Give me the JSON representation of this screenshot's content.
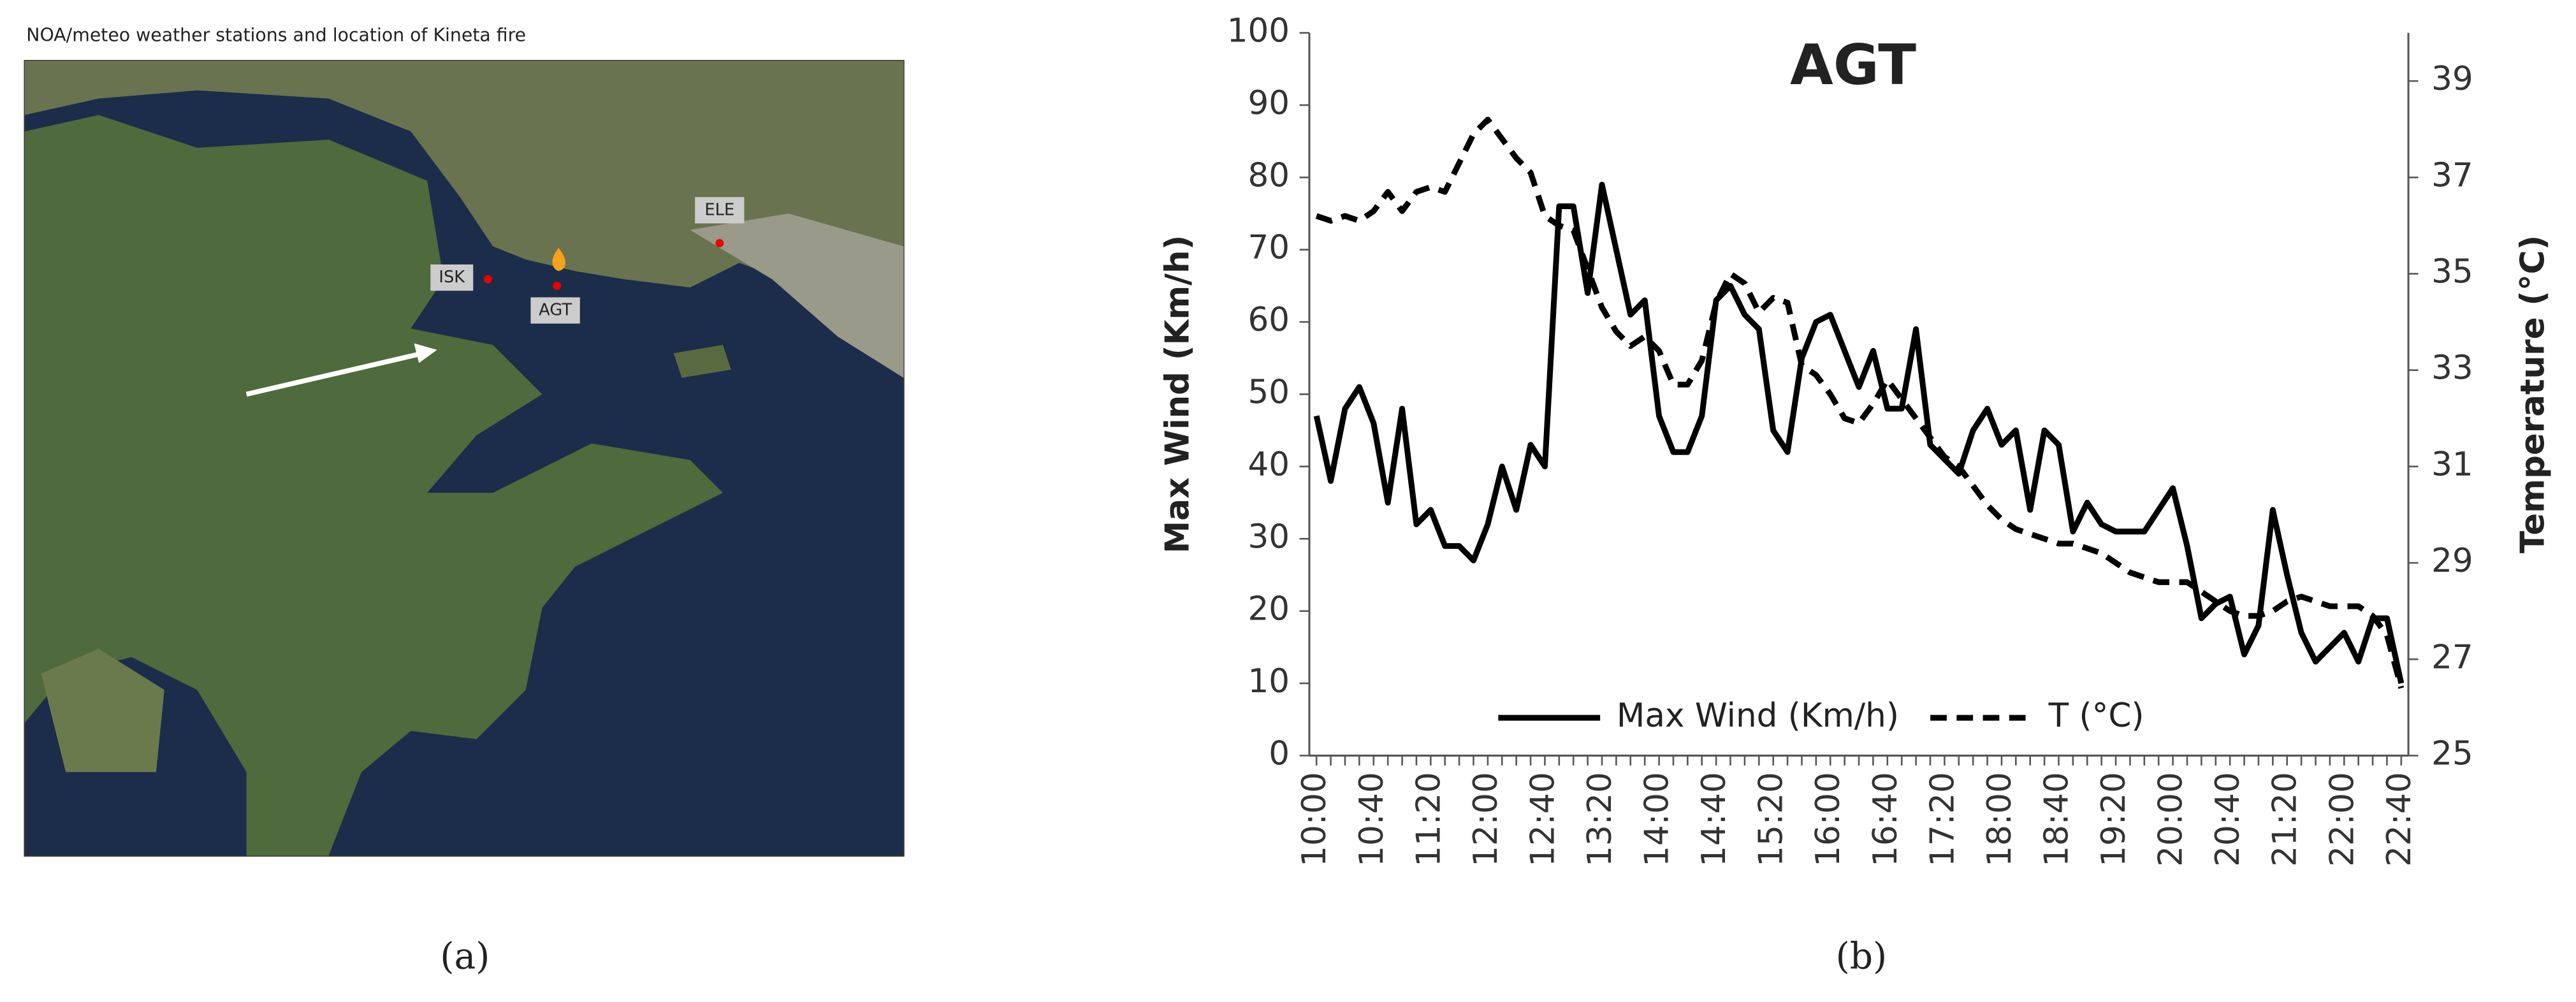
{
  "map": {
    "title": "NOA/meteo weather stations and location of Kineta fire",
    "stations": [
      "ISK",
      "AGT",
      "ELE"
    ]
  },
  "panel_labels": [
    "(a)",
    "(b)"
  ],
  "chart_data": {
    "type": "line",
    "title": "AGT",
    "ylabel": "Max Wind (Km/h)",
    "y2label": "Temperature (°C)",
    "categories": [
      "10:00",
      null,
      null,
      null,
      "10:40",
      null,
      null,
      null,
      "11:20",
      null,
      null,
      null,
      "12:00",
      null,
      null,
      null,
      "12:40",
      null,
      null,
      null,
      "13:20",
      null,
      null,
      null,
      "14:00",
      null,
      null,
      null,
      "14:40",
      null,
      null,
      null,
      "15:20",
      null,
      null,
      null,
      "16:00",
      null,
      null,
      null,
      "16:40",
      null,
      null,
      null,
      "17:20",
      null,
      null,
      null,
      "18:00",
      null,
      null,
      null,
      "18:40",
      null,
      null,
      null,
      "19:20",
      null,
      null,
      null,
      "20:00",
      null,
      null,
      null,
      "20:40",
      null,
      null,
      null,
      "21:20",
      null,
      null,
      null,
      "22:00",
      null,
      null,
      null,
      "22:40"
    ],
    "series": [
      {
        "name": "Max Wind (Km/h)",
        "color": "#000000",
        "dash": false,
        "values": [
          47,
          38,
          48,
          51,
          46,
          35,
          48,
          32,
          34,
          29,
          29,
          27,
          32,
          40,
          34,
          43,
          40,
          76,
          76,
          64,
          79,
          70,
          61,
          63,
          47,
          42,
          42,
          47,
          63,
          65,
          61,
          59,
          45,
          42,
          55,
          60,
          61,
          56,
          51,
          56,
          48,
          48,
          59,
          43,
          41,
          39,
          45,
          48,
          43,
          45,
          34,
          45,
          43,
          31,
          35,
          32,
          31,
          31,
          31,
          34,
          37,
          29,
          19,
          21,
          22,
          14,
          18,
          34,
          25,
          17,
          13,
          15,
          17,
          13,
          19,
          19,
          10
        ]
      },
      {
        "name": "T (°C)",
        "color": "#000000",
        "dash": true,
        "axis": "y2",
        "values": [
          36.2,
          36.1,
          36.2,
          36.1,
          36.3,
          36.7,
          36.3,
          36.7,
          36.8,
          36.7,
          37.3,
          37.9,
          38.2,
          37.8,
          37.4,
          37.1,
          36.2,
          36.0,
          35.9,
          35.1,
          34.3,
          33.8,
          33.5,
          33.7,
          33.4,
          32.7,
          32.7,
          33.2,
          34.4,
          35.0,
          34.8,
          34.2,
          34.5,
          34.4,
          33.1,
          32.9,
          32.5,
          32.0,
          31.9,
          32.3,
          32.8,
          32.4,
          32.0,
          31.6,
          31.2,
          31.0,
          30.6,
          30.2,
          29.9,
          29.7,
          29.6,
          29.5,
          29.4,
          29.4,
          29.3,
          29.2,
          29.0,
          28.8,
          28.7,
          28.6,
          28.6,
          28.6,
          28.4,
          28.2,
          28.0,
          27.9,
          27.9,
          28.0,
          28.2,
          28.3,
          28.2,
          28.1,
          28.1,
          28.1,
          27.9,
          27.5,
          26.4
        ]
      }
    ],
    "ylim": [
      0,
      100
    ],
    "yticks": [
      0,
      10,
      20,
      30,
      40,
      50,
      60,
      70,
      80,
      90,
      100
    ],
    "y2lim": [
      25,
      40
    ],
    "y2ticks": [
      25,
      27,
      29,
      31,
      33,
      35,
      37,
      39
    ],
    "grid": false,
    "legend": "bottom"
  }
}
